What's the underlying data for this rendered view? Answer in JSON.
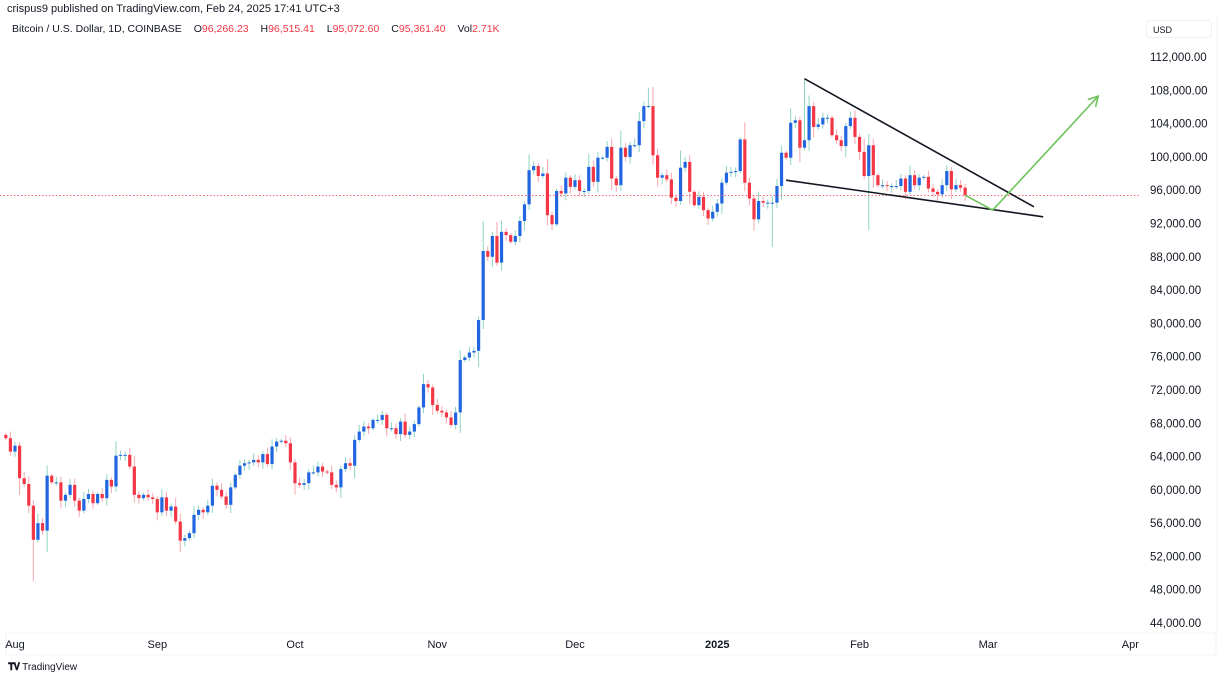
{
  "header": {
    "published": "crispus9 published on TradingView.com, Feb 24, 2025 17:41 UTC+3",
    "symbol": "Bitcoin / U.S. Dollar, 1D, COINBASE",
    "o_label": "O",
    "o": "96,266.23",
    "h_label": "H",
    "h": "96,515.41",
    "l_label": "L",
    "l": "95,072.60",
    "c_label": "C",
    "c": "95,361.40",
    "vol_label": "Vol",
    "vol": "2.71K"
  },
  "currency": "USD",
  "footer": {
    "brand": "TradingView",
    "logo_text": "TV"
  },
  "colors": {
    "up_body": "#2166e0",
    "up_wick": "#8fd3c4",
    "down_body": "#f23645",
    "down_wick": "#f7a7ae",
    "price_line": "#f23645",
    "trendline": "#131722",
    "projection": "#6cc35a"
  },
  "chart_data": {
    "type": "candlestick",
    "title": "",
    "interval": "1D",
    "unit": "thousand USD",
    "start_date": "2024-07-30",
    "first_open": 66.6,
    "closes": [
      66.2,
      64.6,
      65.3,
      61.4,
      60.7,
      58.1,
      54.0,
      56.0,
      55.1,
      61.7,
      60.9,
      60.9,
      58.7,
      59.4,
      60.6,
      58.7,
      57.5,
      58.9,
      59.5,
      58.4,
      59.5,
      59.0,
      61.2,
      60.4,
      64.1,
      64.2,
      64.2,
      62.8,
      59.4,
      59.0,
      59.4,
      59.1,
      58.9,
      57.3,
      59.1,
      57.5,
      58.0,
      56.2,
      53.9,
      54.2,
      54.8,
      57.0,
      57.6,
      57.3,
      58.1,
      60.5,
      60.0,
      59.2,
      58.2,
      60.3,
      61.8,
      62.9,
      63.2,
      63.3,
      63.6,
      63.3,
      64.3,
      63.1,
      65.2,
      65.8,
      65.9,
      65.6,
      63.3,
      60.8,
      60.6,
      60.8,
      62.1,
      62.1,
      62.8,
      62.2,
      62.1,
      60.6,
      60.3,
      62.5,
      63.2,
      62.9,
      66.0,
      67.0,
      67.6,
      67.4,
      68.4,
      68.4,
      69.0,
      67.4,
      67.4,
      66.7,
      68.2,
      66.6,
      67.0,
      67.9,
      69.9,
      72.7,
      72.3,
      70.2,
      69.5,
      69.3,
      68.7,
      67.8,
      69.3,
      75.6,
      75.9,
      76.5,
      76.7,
      80.4,
      88.7,
      88.0,
      90.5,
      87.3,
      91.0,
      90.6,
      89.8,
      90.5,
      92.3,
      94.3,
      98.4,
      98.9,
      97.7,
      98.0,
      93.0,
      91.9,
      95.9,
      95.6,
      97.5,
      96.4,
      97.2,
      95.9,
      95.9,
      98.8,
      97.0,
      99.9,
      99.9,
      101.2,
      97.4,
      96.6,
      101.1,
      100.0,
      101.4,
      101.4,
      104.3,
      106.1,
      106.1,
      100.2,
      97.5,
      97.8,
      97.3,
      95.1,
      94.7,
      98.7,
      99.4,
      95.8,
      94.2,
      95.2,
      93.6,
      92.6,
      93.4,
      94.4,
      96.9,
      98.1,
      98.2,
      98.3,
      102.1,
      96.9,
      95.0,
      92.5,
      94.7,
      94.5,
      94.5,
      94.5,
      96.5,
      100.5,
      99.9,
      104.1,
      104.4,
      101.1,
      102.0,
      106.1,
      103.6,
      103.9,
      104.7,
      104.7,
      102.6,
      102.0,
      101.3,
      103.7,
      104.7,
      102.4,
      100.6,
      97.7,
      101.4,
      97.8,
      96.6,
      96.6,
      96.5,
      96.5,
      96.5,
      97.4,
      95.8,
      97.8,
      96.6,
      97.5,
      97.6,
      96.2,
      95.8,
      95.5,
      96.6,
      98.3,
      96.1,
      96.6,
      96.3,
      95.4
    ],
    "wick_extremes": [
      {
        "date": "2024-08-05",
        "low": 49.0
      },
      {
        "date": "2024-09-06",
        "low": 52.5
      },
      {
        "date": "2024-12-17",
        "high": 108.3
      },
      {
        "date": "2025-01-13",
        "low": 89.2
      },
      {
        "date": "2025-01-20",
        "high": 109.4
      },
      {
        "date": "2025-02-03",
        "low": 91.2
      }
    ],
    "last_price": 95.3614,
    "y_axis": {
      "range": [
        42,
        114
      ],
      "ticks": [
        "112,000.00",
        "108,000.00",
        "104,000.00",
        "100,000.00",
        "96,000.00",
        "92,000.00",
        "88,000.00",
        "84,000.00",
        "80,000.00",
        "76,000.00",
        "72,000.00",
        "68,000.00",
        "64,000.00",
        "60,000.00",
        "56,000.00",
        "52,000.00",
        "48,000.00",
        "44,000.00"
      ],
      "tick_values": [
        112,
        108,
        104,
        100,
        96,
        92,
        88,
        84,
        80,
        76,
        72,
        68,
        64,
        60,
        56,
        52,
        48,
        44
      ]
    },
    "x_axis": {
      "ticks": [
        {
          "label": "Aug",
          "date": "2024-08-01"
        },
        {
          "label": "Sep",
          "date": "2024-09-01"
        },
        {
          "label": "Oct",
          "date": "2024-10-01"
        },
        {
          "label": "Nov",
          "date": "2024-11-01"
        },
        {
          "label": "Dec",
          "date": "2024-12-01"
        },
        {
          "label": "2025",
          "date": "2025-01-01",
          "bold": true
        },
        {
          "label": "Feb",
          "date": "2025-02-01"
        },
        {
          "label": "Mar",
          "date": "2025-03-01"
        },
        {
          "label": "Apr",
          "date": "2025-04-01"
        }
      ]
    },
    "grid": false,
    "annotations": [
      {
        "kind": "trendline",
        "name": "falling-wedge-upper",
        "points": [
          [
            "2025-01-20",
            109.4
          ],
          [
            "2025-03-11",
            94.0
          ]
        ]
      },
      {
        "kind": "trendline",
        "name": "falling-wedge-lower",
        "points": [
          [
            "2025-01-16",
            97.2
          ],
          [
            "2025-03-13",
            92.8
          ]
        ]
      },
      {
        "kind": "projection-arrow",
        "name": "projected-path",
        "points": [
          [
            "2025-02-24",
            95.4
          ],
          [
            "2025-03-02",
            93.6
          ],
          [
            "2025-03-25",
            107.3
          ]
        ]
      }
    ]
  }
}
